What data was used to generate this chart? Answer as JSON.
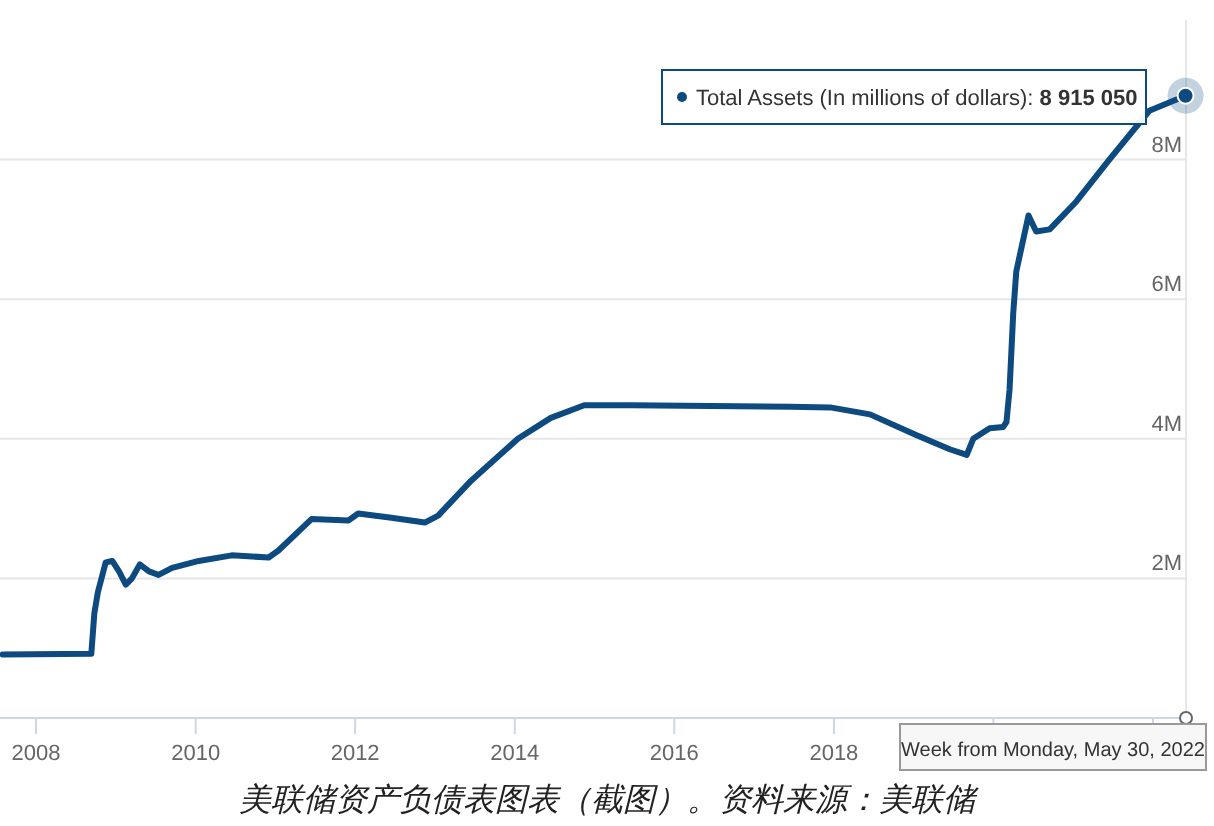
{
  "chart_data": {
    "type": "line",
    "x": [
      "2007-08-01",
      "2008-09-10",
      "2008-09-24",
      "2008-10-10",
      "2008-11-15",
      "2008-12-15",
      "2009-01-15",
      "2009-02-15",
      "2009-03-15",
      "2009-04-20",
      "2009-06-01",
      "2009-07-15",
      "2009-09-15",
      "2010-01-15",
      "2010-06-15",
      "2010-12-01",
      "2011-01-15",
      "2011-06-15",
      "2011-12-01",
      "2012-01-15",
      "2012-06-15",
      "2012-11-15",
      "2013-01-15",
      "2013-06-15",
      "2014-01-15",
      "2014-06-15",
      "2014-11-15",
      "2015-06-15",
      "2016-06-15",
      "2017-06-15",
      "2017-12-15",
      "2018-06-15",
      "2019-01-15",
      "2019-06-15",
      "2019-09-01",
      "2019-10-01",
      "2019-12-15",
      "2020-02-15",
      "2020-03-01",
      "2020-03-15",
      "2020-04-01",
      "2020-04-15",
      "2020-06-10",
      "2020-07-15",
      "2020-09-15",
      "2021-01-15",
      "2021-06-15",
      "2021-12-15",
      "2022-05-30"
    ],
    "series": [
      {
        "color": "#0d4a80",
        "values": [
          910000,
          920000,
          1500000,
          1800000,
          2230000,
          2250000,
          2100000,
          1910000,
          2000000,
          2200000,
          2100000,
          2050000,
          2150000,
          2250000,
          2330000,
          2300000,
          2400000,
          2850000,
          2830000,
          2930000,
          2870000,
          2800000,
          2900000,
          3400000,
          4000000,
          4300000,
          4480000,
          4480000,
          4470000,
          4460000,
          4450000,
          4350000,
          4050000,
          3850000,
          3770000,
          4000000,
          4150000,
          4170000,
          4240000,
          4700000,
          5800000,
          6400000,
          7200000,
          6970000,
          7000000,
          7400000,
          8000000,
          8700000,
          8915050
        ]
      }
    ],
    "xlim": [
      "2007-07-20",
      "2022-06-01"
    ],
    "xticks": [
      {
        "value": "2008",
        "label": "2008"
      },
      {
        "value": "2010",
        "label": "2010"
      },
      {
        "value": "2012",
        "label": "2012"
      },
      {
        "value": "2014",
        "label": "2014"
      },
      {
        "value": "2016",
        "label": "2016"
      },
      {
        "value": "2018",
        "label": "2018"
      },
      {
        "value": "2020",
        "label": null
      },
      {
        "value": "2022",
        "label": null
      }
    ],
    "ylim": [
      0,
      10000000
    ],
    "yticks": [
      {
        "value": 2000000,
        "label": "2M"
      },
      {
        "value": 4000000,
        "label": "4M"
      },
      {
        "value": 6000000,
        "label": "6M"
      },
      {
        "value": 8000000,
        "label": "8M"
      }
    ],
    "grid": "y",
    "marker": "none",
    "annotations": [
      {
        "text": "Total Assets (In millions of dollars): 8 915 050",
        "x": "2022-05-30",
        "y": 8915050
      },
      "Week from Monday, May 30, 2022",
      "美联储资产负债表图表（截图）。资料来源：美联储"
    ]
  }
}
